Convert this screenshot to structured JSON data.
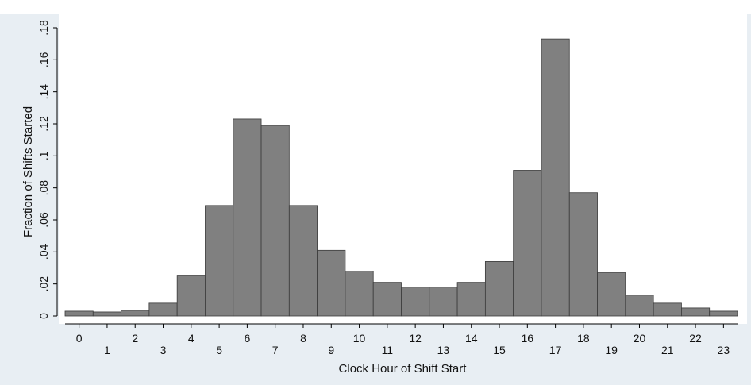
{
  "chart_data": {
    "type": "bar",
    "title": "",
    "xlabel": "Clock Hour of Shift Start",
    "ylabel": "Fraction of Shifts Started",
    "categories": [
      0,
      1,
      2,
      3,
      4,
      5,
      6,
      7,
      8,
      9,
      10,
      11,
      12,
      13,
      14,
      15,
      16,
      17,
      18,
      19,
      20,
      21,
      22,
      23
    ],
    "values": [
      0.003,
      0.0025,
      0.0035,
      0.008,
      0.025,
      0.069,
      0.123,
      0.119,
      0.069,
      0.041,
      0.028,
      0.021,
      0.018,
      0.018,
      0.021,
      0.034,
      0.091,
      0.173,
      0.077,
      0.027,
      0.013,
      0.008,
      0.005,
      0.003
    ],
    "ylim": [
      0,
      0.18
    ],
    "yticks": [
      0,
      0.02,
      0.04,
      0.06,
      0.08,
      0.1,
      0.12,
      0.14,
      0.16,
      0.18
    ],
    "ytick_labels": [
      "0",
      ".02",
      ".04",
      ".06",
      ".08",
      ".1",
      ".12",
      ".14",
      ".16",
      ".18"
    ],
    "xtick_labels": [
      "0",
      "1",
      "2",
      "3",
      "4",
      "5",
      "6",
      "7",
      "8",
      "9",
      "10",
      "11",
      "12",
      "13",
      "14",
      "15",
      "16",
      "17",
      "18",
      "19",
      "20",
      "21",
      "22",
      "23"
    ],
    "xtick_staggered": true,
    "grid": false,
    "colors": {
      "outer_background": "#e8eef3",
      "plot_background": "#ffffff",
      "bar_fill": "#808080",
      "bar_stroke": "#3a3a3a",
      "axis": "#000000"
    }
  }
}
